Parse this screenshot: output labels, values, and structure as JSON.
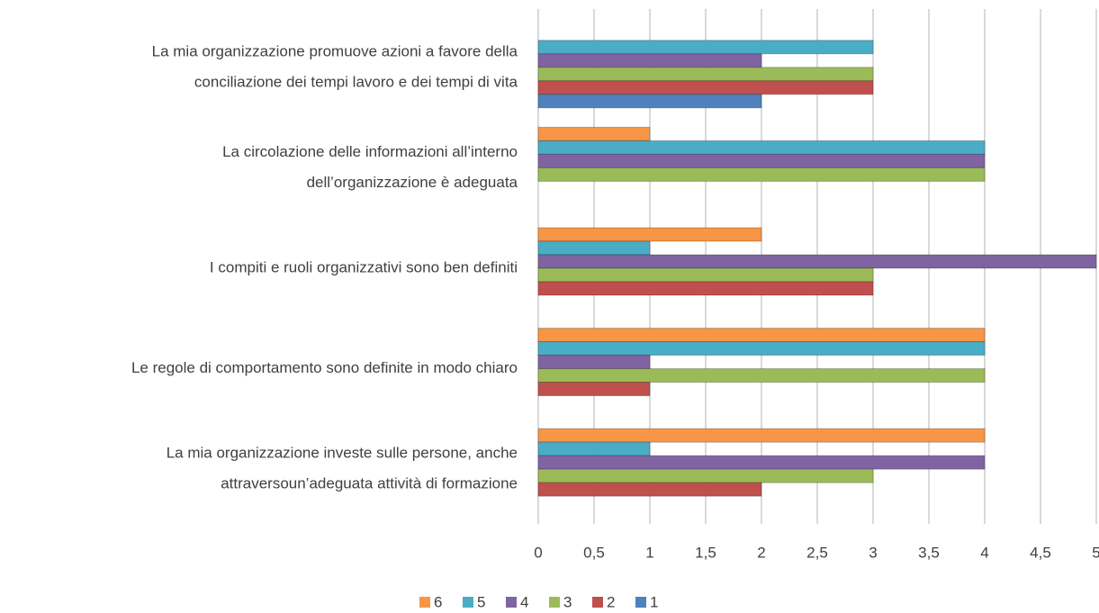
{
  "chart_data": {
    "type": "hbar",
    "categories": [
      [
        "La mia organizzazione promuove azioni a favore della",
        "conciliazione dei tempi lavoro e dei tempi di vita"
      ],
      [
        "La circolazione delle informazioni all’interno",
        "dell’organizzazione è adeguata"
      ],
      [
        "I compiti e ruoli organizzativi sono ben definiti"
      ],
      [
        "Le regole di comportamento sono definite in modo chiaro"
      ],
      [
        "La mia organizzazione investe sulle persone, anche",
        "attraversoun’adeguata attività di formazione"
      ]
    ],
    "series": [
      {
        "name": "6",
        "color": "#f79646",
        "values": [
          0,
          1,
          2,
          4,
          4
        ]
      },
      {
        "name": "5",
        "color": "#4bacc6",
        "values": [
          3,
          4,
          1,
          4,
          1
        ]
      },
      {
        "name": "4",
        "color": "#8064a2",
        "values": [
          2,
          4,
          5,
          1,
          4
        ]
      },
      {
        "name": "3",
        "color": "#9bbb59",
        "values": [
          3,
          4,
          3,
          4,
          3
        ]
      },
      {
        "name": "2",
        "color": "#c0504d",
        "values": [
          3,
          0,
          3,
          1,
          2
        ]
      },
      {
        "name": "1",
        "color": "#4f81bd",
        "values": [
          2,
          0,
          0,
          0,
          0
        ]
      }
    ],
    "xlim": [
      0,
      5
    ],
    "xticks": [
      0,
      {
        "value": 0.5,
        "label": "0,5"
      },
      1,
      {
        "value": 1.5,
        "label": "1,5"
      },
      2,
      {
        "value": 2.5,
        "label": "2,5"
      },
      3,
      {
        "value": 3.5,
        "label": "3,5"
      },
      4,
      {
        "value": 4.5,
        "label": "4,5"
      },
      5
    ],
    "grid": true,
    "legend": "bottom"
  }
}
